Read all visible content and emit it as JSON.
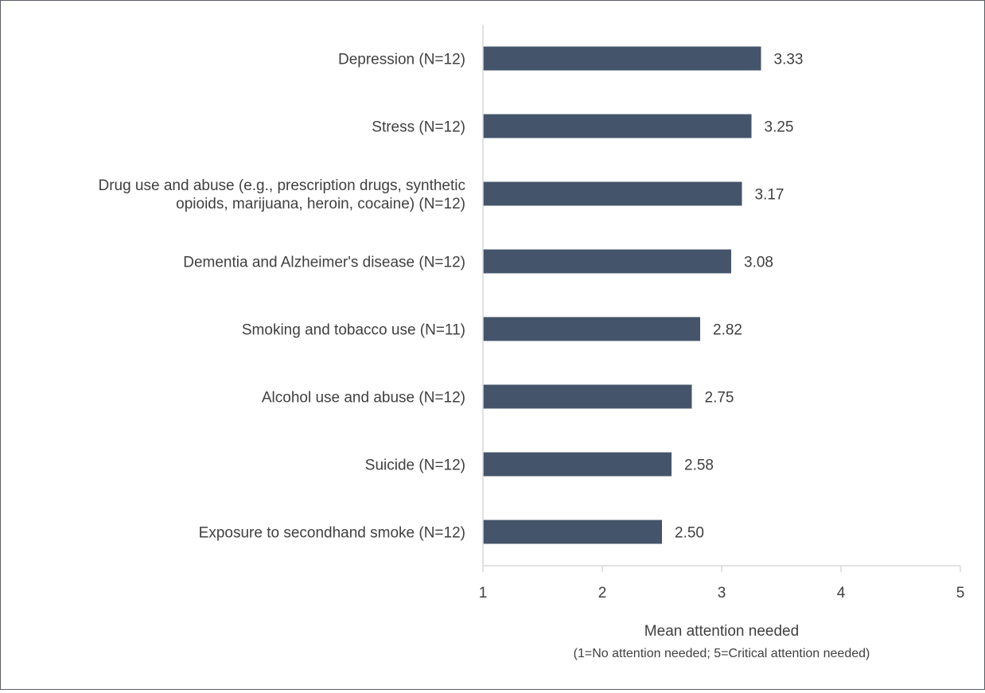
{
  "chart_data": {
    "type": "bar",
    "orientation": "horizontal",
    "categories": [
      "Depression (N=12)",
      "Stress (N=12)",
      "Drug use and abuse (e.g., prescription drugs, synthetic opioids, marijuana, heroin, cocaine) (N=12)",
      "Dementia and Alzheimer's disease (N=12)",
      "Smoking and tobacco use (N=11)",
      "Alcohol use and abuse (N=12)",
      "Suicide (N=12)",
      "Exposure to secondhand smoke (N=12)"
    ],
    "category_lines": [
      [
        "Depression (N=12)"
      ],
      [
        "Stress (N=12)"
      ],
      [
        "Drug use and abuse (e.g., prescription drugs, synthetic",
        "opioids, marijuana, heroin, cocaine) (N=12)"
      ],
      [
        "Dementia and Alzheimer's disease (N=12)"
      ],
      [
        "Smoking and tobacco use (N=11)"
      ],
      [
        "Alcohol use and abuse (N=12)"
      ],
      [
        "Suicide (N=12)"
      ],
      [
        "Exposure to secondhand smoke (N=12)"
      ]
    ],
    "values": [
      3.33,
      3.25,
      3.17,
      3.08,
      2.82,
      2.75,
      2.58,
      2.5
    ],
    "value_labels": [
      "3.33",
      "3.25",
      "3.17",
      "3.08",
      "2.82",
      "2.75",
      "2.58",
      "2.50"
    ],
    "xlabel": "Mean attention needed",
    "xlabel_sub": "(1=No attention needed; 5=Critical attention needed)",
    "xlim": [
      1,
      5
    ],
    "xticks": [
      1,
      2,
      3,
      4,
      5
    ],
    "grid": false,
    "legend": "none",
    "colors": {
      "bar": "#44546a",
      "axis": "#d9d9d9",
      "text": "#404040"
    }
  }
}
